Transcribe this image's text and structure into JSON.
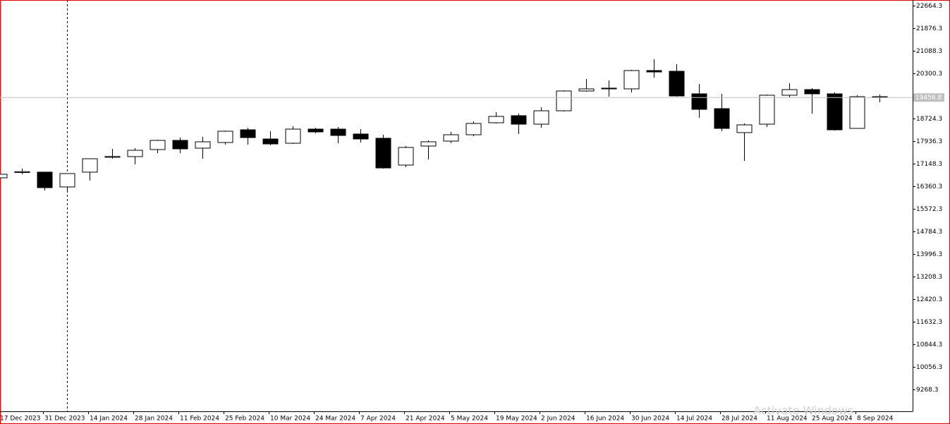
{
  "chart_data": {
    "type": "candlestick",
    "categories": [
      null,
      "17 Dec 2023",
      null,
      "31 Dec 2023",
      null,
      "14 Jan 2024",
      null,
      "28 Jan 2024",
      null,
      "11 Feb 2024",
      null,
      "25 Feb 2024",
      null,
      "10 Mar 2024",
      null,
      "24 Mar 2024",
      null,
      "7 Apr 2024",
      null,
      "21 Apr 2024",
      null,
      "5 May 2024",
      null,
      "19 May 2024",
      null,
      "2 Jun 2024",
      null,
      "16 Jun 2024",
      null,
      "30 Jun 2024",
      null,
      "14 Jul 2024",
      null,
      "28 Jul 2024",
      null,
      "11 Aug 2024",
      null,
      "25 Aug 2024",
      null,
      "8 Sep 2024"
    ],
    "open": [
      16656,
      16840,
      16853,
      16336,
      16853,
      17370,
      17395,
      17641,
      17961,
      17690,
      17887,
      18331,
      18010,
      17862,
      18355,
      18355,
      18183,
      18035,
      17099,
      17764,
      17936,
      18158,
      18577,
      18823,
      18527,
      18995,
      19685,
      19759,
      19759,
      20399,
      20374,
      19586,
      19069,
      18232,
      18527,
      19537,
      19734,
      19586,
      18380,
      19488
    ],
    "high": [
      16800,
      16976,
      16853,
      16803,
      17321,
      17665,
      17690,
      17985,
      18059,
      18084,
      18306,
      18405,
      18281,
      18454,
      18405,
      18429,
      18355,
      18158,
      17764,
      17961,
      18257,
      18626,
      18946,
      18897,
      19118,
      19709,
      20103,
      20054,
      20424,
      20793,
      20621,
      19931,
      19586,
      18552,
      19562,
      19956,
      19783,
      19636,
      19537,
      19562
    ],
    "low": [
      16640,
      16779,
      16213,
      16213,
      16557,
      17321,
      17124,
      17518,
      17518,
      17321,
      17813,
      17813,
      17789,
      17838,
      18207,
      17862,
      17887,
      16976,
      17025,
      17297,
      17862,
      18109,
      18552,
      18183,
      18405,
      18971,
      19660,
      19488,
      19636,
      20153,
      19488,
      18749,
      18281,
      17247,
      18429,
      19463,
      18897,
      18306,
      18380,
      19290
    ],
    "close": [
      16779,
      16870,
      16311,
      16803,
      17321,
      17400,
      17616,
      17961,
      17665,
      17912,
      18281,
      18059,
      17838,
      18355,
      18257,
      18133,
      18010,
      17000,
      17715,
      17912,
      18158,
      18552,
      18798,
      18527,
      18995,
      19685,
      19759,
      19784,
      20399,
      20350,
      19512,
      19045,
      18380,
      18503,
      19537,
      19734,
      19586,
      18330,
      19488,
      19456.8
    ],
    "up_color": "#ffffff",
    "down_color": "#000000",
    "ylim": [
      8504.9,
      22861.3
    ],
    "yticks": [
      22664.3,
      21876.3,
      21088.3,
      20300.3,
      18724.3,
      17936.3,
      17148.3,
      16360.3,
      15572.3,
      14784.3,
      13996.3,
      13208.3,
      12420.3,
      11632.3,
      10844.3,
      10056.3,
      9268.3
    ],
    "current_price": 19456.8,
    "watermark": "Activate Windows"
  }
}
